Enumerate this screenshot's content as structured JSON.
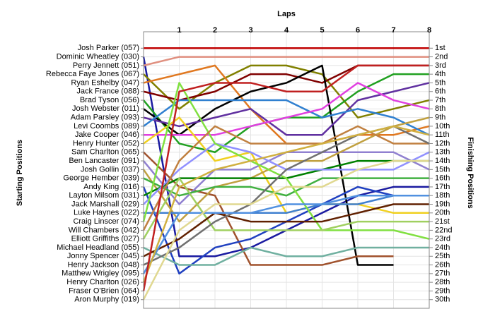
{
  "chart_data": {
    "type": "line",
    "title": "Laps",
    "y_label": "Starting Positions",
    "y2_label": "Finishing Positions",
    "x": [
      0,
      1,
      2,
      3,
      4,
      5,
      6,
      7,
      8
    ],
    "xlim": [
      0,
      8
    ],
    "xticks": [
      1,
      2,
      3,
      4,
      5,
      6,
      7,
      8
    ],
    "ylim": [
      0,
      31
    ],
    "yticks": [
      {
        "value": 1,
        "label": "1st"
      },
      {
        "value": 2,
        "label": "2nd"
      },
      {
        "value": 3,
        "label": "3rd"
      },
      {
        "value": 4,
        "label": "4th"
      },
      {
        "value": 5,
        "label": "5th"
      },
      {
        "value": 6,
        "label": "6th"
      },
      {
        "value": 7,
        "label": "7th"
      },
      {
        "value": 8,
        "label": "8th"
      },
      {
        "value": 9,
        "label": "9th"
      },
      {
        "value": 10,
        "label": "10th"
      },
      {
        "value": 11,
        "label": "11th"
      },
      {
        "value": 12,
        "label": "12th"
      },
      {
        "value": 13,
        "label": "13th"
      },
      {
        "value": 14,
        "label": "14th"
      },
      {
        "value": 15,
        "label": "15th"
      },
      {
        "value": 16,
        "label": "16th"
      },
      {
        "value": 17,
        "label": "17th"
      },
      {
        "value": 18,
        "label": "18th"
      },
      {
        "value": 19,
        "label": "19th"
      },
      {
        "value": 20,
        "label": "20th"
      },
      {
        "value": 21,
        "label": "21st"
      },
      {
        "value": 22,
        "label": "22nd"
      },
      {
        "value": 23,
        "label": "23rd"
      },
      {
        "value": 24,
        "label": "24th"
      },
      {
        "value": 25,
        "label": "25th"
      },
      {
        "value": 26,
        "label": "26th"
      },
      {
        "value": 27,
        "label": "27th"
      },
      {
        "value": 28,
        "label": "28th"
      },
      {
        "value": 29,
        "label": "29th"
      },
      {
        "value": 30,
        "label": "30th"
      }
    ],
    "grid": true,
    "series": [
      {
        "name": "Josh Parker (057)",
        "color": "#c00000",
        "values": [
          1,
          1,
          1,
          1,
          1,
          1,
          1,
          1,
          1
        ]
      },
      {
        "name": "Dominic Wheatley (030)",
        "color": "#1a1aa0",
        "values": [
          2,
          25,
          25,
          24,
          22,
          20,
          18,
          17,
          17
        ]
      },
      {
        "name": "Perry Jennett (051)",
        "color": "#e09080",
        "values": [
          3,
          2,
          2,
          2,
          2,
          2,
          2,
          2,
          2
        ]
      },
      {
        "name": "Rebecca Faye Jones (067)",
        "color": "#808000",
        "values": [
          4,
          8,
          5,
          3,
          3,
          4,
          9,
          8,
          7
        ]
      },
      {
        "name": "Ryan Eshelby (047)",
        "color": "#e07820",
        "values": [
          5,
          4,
          3,
          8,
          12,
          12,
          11,
          11,
          10
        ]
      },
      {
        "name": "Jack France (088)",
        "color": "#800000",
        "values": [
          6,
          7,
          6,
          4,
          4,
          5,
          3,
          3,
          3
        ]
      },
      {
        "name": "Brad Tyson (056)",
        "color": "#20a020",
        "values": [
          7,
          12,
          13,
          10,
          9,
          9,
          6,
          4,
          4
        ]
      },
      {
        "name": "Josh Webster (011)",
        "color": "#000000",
        "values": [
          8,
          11,
          8,
          6,
          5,
          3,
          26,
          26,
          null
        ]
      },
      {
        "name": "Adam Parsley (093)",
        "color": "#6030a0",
        "values": [
          9,
          10,
          9,
          8,
          11,
          11,
          7,
          6,
          5
        ]
      },
      {
        "name": "Levi Coombs (089)",
        "color": "#3080d0",
        "values": [
          10,
          7,
          7,
          7,
          7,
          9,
          8,
          9,
          11
        ]
      },
      {
        "name": "Jake Cooper (046)",
        "color": "#e040e0",
        "values": [
          11,
          11,
          11,
          10,
          9,
          8,
          5,
          7,
          8
        ]
      },
      {
        "name": "Henry Hunter (052)",
        "color": "#f0d020",
        "values": [
          12,
          9,
          14,
          13,
          20,
          19,
          19,
          20,
          20
        ]
      },
      {
        "name": "Sam Charlton (065)",
        "color": "#a0522d",
        "values": [
          13,
          17,
          18,
          26,
          26,
          26,
          25,
          25,
          null
        ]
      },
      {
        "name": "Ben Lancaster (091)",
        "color": "#9080d0",
        "values": [
          14,
          19,
          15,
          15,
          13,
          13,
          13,
          13,
          15
        ]
      },
      {
        "name": "Josh Gollin (037)",
        "color": "#c0a040",
        "values": [
          15,
          21,
          17,
          16,
          14,
          14,
          12,
          10,
          9
        ]
      },
      {
        "name": "George Hember (039)",
        "color": "#40b040",
        "values": [
          16,
          18,
          17,
          17,
          18,
          16,
          16,
          16,
          16
        ]
      },
      {
        "name": "Andy King (016)",
        "color": "#2040c0",
        "values": [
          17,
          27,
          24,
          23,
          21,
          19,
          17,
          18,
          18
        ]
      },
      {
        "name": "Layton Milsom (031)",
        "color": "#008000",
        "values": [
          18,
          16,
          16,
          16,
          16,
          15,
          14,
          14,
          14
        ]
      },
      {
        "name": "Jack Marshall (029)",
        "color": "#9090ff",
        "values": [
          19,
          15,
          12,
          13,
          15,
          15,
          15,
          15,
          13
        ]
      },
      {
        "name": "Luke Haynes (022)",
        "color": "#4080d0",
        "values": [
          20,
          20,
          20,
          20,
          20,
          19,
          19,
          18,
          18
        ]
      },
      {
        "name": "Craig Linscer (074)",
        "color": "#80e040",
        "values": [
          21,
          5,
          12,
          14,
          16,
          22,
          22,
          22,
          23
        ]
      },
      {
        "name": "Will Chambers (042)",
        "color": "#c08040",
        "values": [
          22,
          14,
          10,
          12,
          12,
          12,
          10,
          12,
          12
        ]
      },
      {
        "name": "Elliott Griffiths (027)",
        "color": "#a0d060",
        "values": [
          23,
          16,
          22,
          22,
          22,
          22,
          21,
          21,
          21
        ]
      },
      {
        "name": "Michael Headland (055)",
        "color": "#70b0a0",
        "values": [
          24,
          26,
          26,
          24,
          25,
          25,
          24,
          24,
          24
        ]
      },
      {
        "name": "Jonny Spencer (045)",
        "color": "#602000",
        "values": [
          25,
          23,
          20,
          21,
          21,
          21,
          20,
          19,
          19
        ]
      },
      {
        "name": "Henry Jackson (048)",
        "color": "#707070",
        "values": [
          26,
          24,
          21,
          19,
          15,
          13,
          11,
          10,
          12
        ]
      },
      {
        "name": "Matthew Wrigley (095)",
        "color": "#5090e0",
        "values": [
          27,
          20,
          20,
          20,
          19,
          19,
          18,
          18,
          18
        ]
      },
      {
        "name": "Henry Charlton (026)",
        "color": "#d0b040",
        "values": [
          28,
          17,
          15,
          14,
          13,
          12,
          11,
          10,
          11
        ]
      },
      {
        "name": "Fraser O'Brien (064)",
        "color": "#c02020",
        "values": [
          29,
          6,
          5,
          5,
          6,
          6,
          3,
          3,
          3
        ]
      },
      {
        "name": "Aron Murphy (019)",
        "color": "#e0d890",
        "values": [
          30,
          22,
          19,
          19,
          17,
          17,
          15,
          14,
          14
        ]
      }
    ]
  }
}
